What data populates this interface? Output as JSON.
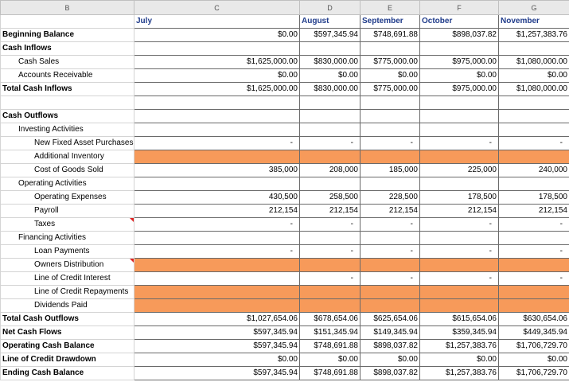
{
  "columns": [
    "B",
    "C",
    "D",
    "E",
    "F",
    "G"
  ],
  "months": [
    "July",
    "August",
    "September",
    "October",
    "November"
  ],
  "rows": [
    {
      "label": "Beginning Balance",
      "values": [
        "$0.00",
        "$597,345.94",
        "$748,691.88",
        "$898,037.82",
        "$1,257,383.76"
      ]
    },
    {
      "label": "Cash Inflows",
      "values": [
        null,
        null,
        null,
        null,
        null
      ]
    },
    {
      "label": "Cash Sales",
      "values": [
        "$1,625,000.00",
        "$830,000.00",
        "$775,000.00",
        "$975,000.00",
        "$1,080,000.00"
      ]
    },
    {
      "label": "Accounts Receivable",
      "values": [
        "$0.00",
        "$0.00",
        "$0.00",
        "$0.00",
        "$0.00"
      ]
    },
    {
      "label": "Total Cash Inflows",
      "values": [
        "$1,625,000.00",
        "$830,000.00",
        "$775,000.00",
        "$975,000.00",
        "$1,080,000.00"
      ]
    },
    {
      "label": null,
      "values": [
        null,
        null,
        null,
        null,
        null
      ]
    },
    {
      "label": "Cash Outflows",
      "values": [
        null,
        null,
        null,
        null,
        null
      ]
    },
    {
      "label": "Investing Activities",
      "values": [
        null,
        null,
        null,
        null,
        null
      ]
    },
    {
      "label": "New Fixed Asset Purchases",
      "values": [
        "-",
        "-",
        "-",
        "-",
        "-"
      ]
    },
    {
      "label": "Additional Inventory",
      "values": [
        null,
        null,
        null,
        null,
        null
      ],
      "fill": "#f79a5a"
    },
    {
      "label": "Cost of Goods Sold",
      "values": [
        "385,000",
        "208,000",
        "185,000",
        "225,000",
        "240,000"
      ]
    },
    {
      "label": "Operating Activities",
      "values": [
        null,
        null,
        null,
        null,
        null
      ]
    },
    {
      "label": "Operating Expenses",
      "values": [
        "430,500",
        "258,500",
        "228,500",
        "178,500",
        "178,500"
      ]
    },
    {
      "label": "Payroll",
      "values": [
        "212,154",
        "212,154",
        "212,154",
        "212,154",
        "212,154"
      ]
    },
    {
      "label": "Taxes",
      "values": [
        "-",
        "-",
        "-",
        "-",
        "-"
      ]
    },
    {
      "label": "Financing Activities",
      "values": [
        null,
        null,
        null,
        null,
        null
      ]
    },
    {
      "label": "Loan Payments",
      "values": [
        "-",
        "-",
        "-",
        "-",
        "-"
      ]
    },
    {
      "label": "Owners Distribution",
      "values": [
        null,
        null,
        null,
        null,
        null
      ],
      "fill": "#f79a5a"
    },
    {
      "label": "Line of Credit Interest",
      "values": [
        null,
        "-",
        "-",
        "-",
        "-"
      ]
    },
    {
      "label": "Line of Credit Repayments",
      "values": [
        null,
        null,
        null,
        null,
        null
      ],
      "fill": "#f79a5a"
    },
    {
      "label": "Dividends Paid",
      "values": [
        null,
        null,
        null,
        null,
        null
      ],
      "fill": "#f79a5a"
    },
    {
      "label": "Total Cash Outflows",
      "values": [
        "$1,027,654.06",
        "$678,654.06",
        "$625,654.06",
        "$615,654.06",
        "$630,654.06"
      ]
    },
    {
      "label": "Net Cash Flows",
      "values": [
        "$597,345.94",
        "$151,345.94",
        "$149,345.94",
        "$359,345.94",
        "$449,345.94"
      ]
    },
    {
      "label": "Operating Cash Balance",
      "values": [
        "$597,345.94",
        "$748,691.88",
        "$898,037.82",
        "$1,257,383.76",
        "$1,706,729.70"
      ]
    },
    {
      "label": "Line of Credit Drawdown",
      "values": [
        "$0.00",
        "$0.00",
        "$0.00",
        "$0.00",
        "$0.00"
      ]
    },
    {
      "label": "Ending Cash Balance",
      "values": [
        "$597,345.94",
        "$748,691.88",
        "$898,037.82",
        "$1,257,383.76",
        "$1,706,729.70"
      ]
    }
  ]
}
